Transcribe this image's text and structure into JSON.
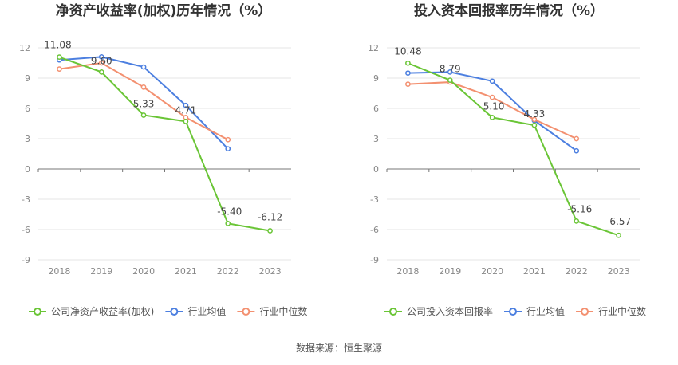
{
  "footer": "数据来源：恒生聚源",
  "chart_data": [
    {
      "type": "line",
      "title": "净资产收益率(加权)历年情况（%）",
      "categories": [
        "2018",
        "2019",
        "2020",
        "2021",
        "2022",
        "2023"
      ],
      "yticks": [
        "12",
        "9",
        "6",
        "3",
        "0",
        "-3",
        "-6",
        "-9"
      ],
      "ylim": [
        -9,
        12
      ],
      "grid": true,
      "legend_position": "bottom",
      "series": [
        {
          "name": "公司净资产收益率(加权)",
          "color": "#6ac536",
          "values": [
            11.08,
            9.6,
            5.33,
            4.71,
            -5.4,
            -6.12
          ],
          "labels": [
            "11.08",
            "9.60",
            "5.33",
            "4.71",
            "-5.40",
            "-6.12"
          ]
        },
        {
          "name": "行业均值",
          "color": "#4c7fe0",
          "values": [
            10.8,
            11.1,
            10.1,
            6.3,
            2.0,
            null
          ]
        },
        {
          "name": "行业中位数",
          "color": "#f39070",
          "values": [
            9.9,
            10.5,
            8.1,
            5.1,
            2.9,
            null
          ]
        }
      ]
    },
    {
      "type": "line",
      "title": "投入资本回报率历年情况（%）",
      "categories": [
        "2018",
        "2019",
        "2020",
        "2021",
        "2022",
        "2023"
      ],
      "yticks": [
        "12",
        "9",
        "6",
        "3",
        "0",
        "-3",
        "-6",
        "-9"
      ],
      "ylim": [
        -9,
        12
      ],
      "grid": true,
      "legend_position": "bottom",
      "series": [
        {
          "name": "公司投入资本回报率",
          "color": "#6ac536",
          "values": [
            10.48,
            8.79,
            5.1,
            4.33,
            -5.16,
            -6.57
          ],
          "labels": [
            "10.48",
            "8.79",
            "5.10",
            "4.33",
            "-5.16",
            "-6.57"
          ]
        },
        {
          "name": "行业均值",
          "color": "#4c7fe0",
          "values": [
            9.5,
            9.6,
            8.7,
            4.8,
            1.8,
            null
          ]
        },
        {
          "name": "行业中位数",
          "color": "#f39070",
          "values": [
            8.4,
            8.6,
            7.1,
            4.9,
            3.0,
            null
          ]
        }
      ]
    }
  ]
}
